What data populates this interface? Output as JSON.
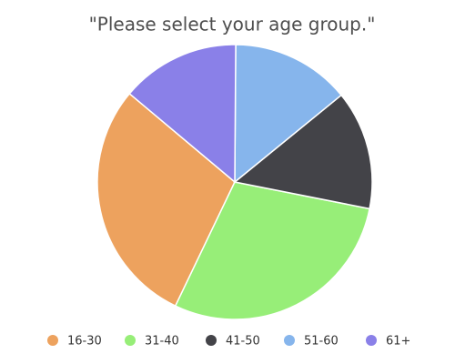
{
  "chart_data": {
    "type": "pie",
    "title": "\"Please select your age group.\"",
    "categories": [
      "16-30",
      "31-40",
      "41-50",
      "51-60",
      "61+"
    ],
    "values": [
      29,
      29,
      14,
      14,
      14
    ],
    "colors": [
      "#eda25e",
      "#97ee78",
      "#434348",
      "#86b5ec",
      "#8a80e8"
    ],
    "legend": "bottom"
  }
}
